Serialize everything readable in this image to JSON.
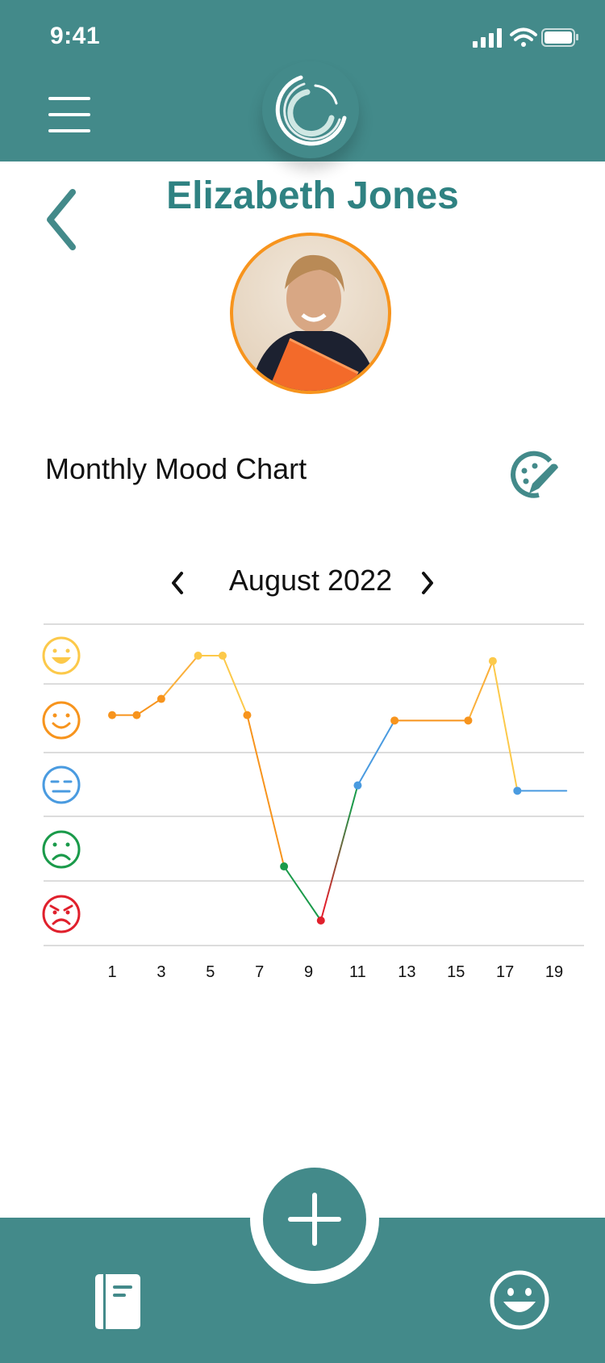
{
  "status_bar": {
    "time": "9:41"
  },
  "profile": {
    "name": "Elizabeth Jones"
  },
  "section": {
    "title": "Monthly Mood Chart"
  },
  "month_nav": {
    "label": "August 2022"
  },
  "colors": {
    "brand": "#438a8a",
    "title_teal": "#2f8282",
    "avatar_ring": "#f7941d",
    "mood_very_happy": "#fcc94a",
    "mood_happy": "#f7941d",
    "mood_neutral": "#4a9be0",
    "mood_sad": "#1a9a4a",
    "mood_angry": "#e0202c"
  },
  "icons": {
    "menu": "hamburger-menu-icon",
    "logo": "app-logo-icon",
    "back": "chevron-left-icon",
    "edit_mood": "edit-mood-icon",
    "add": "plus-icon",
    "journal": "journal-icon",
    "mood": "smiley-face-icon"
  },
  "chart_data": {
    "type": "line",
    "x_ticks": [
      1,
      3,
      5,
      7,
      9,
      11,
      13,
      15,
      17,
      19
    ],
    "y_levels": [
      "very_happy",
      "happy",
      "neutral",
      "sad",
      "angry"
    ],
    "xlim": [
      0,
      20
    ],
    "ylim": [
      0,
      5
    ],
    "points": [
      {
        "x": 1,
        "y": 3.9
      },
      {
        "x": 2,
        "y": 3.9
      },
      {
        "x": 3,
        "y": 4.2
      },
      {
        "x": 4.5,
        "y": 5.0
      },
      {
        "x": 5.5,
        "y": 5.0
      },
      {
        "x": 6.5,
        "y": 3.9
      },
      {
        "x": 8,
        "y": 1.1
      },
      {
        "x": 9.5,
        "y": 0.1
      },
      {
        "x": 11,
        "y": 2.6
      },
      {
        "x": 12.5,
        "y": 3.8
      },
      {
        "x": 15.5,
        "y": 3.8
      },
      {
        "x": 16.5,
        "y": 4.9
      },
      {
        "x": 17.5,
        "y": 2.5
      },
      {
        "x": 19.5,
        "y": 2.5
      }
    ],
    "point_colors": [
      "#f7941d",
      "#f7941d",
      "#f7941d",
      "#fcc94a",
      "#fcc94a",
      "#f7941d",
      "#1a9a4a",
      "#e0202c",
      "#4a9be0",
      "#f7941d",
      "#f7941d",
      "#fcc94a",
      "#4a9be0",
      ""
    ],
    "grid": true
  }
}
